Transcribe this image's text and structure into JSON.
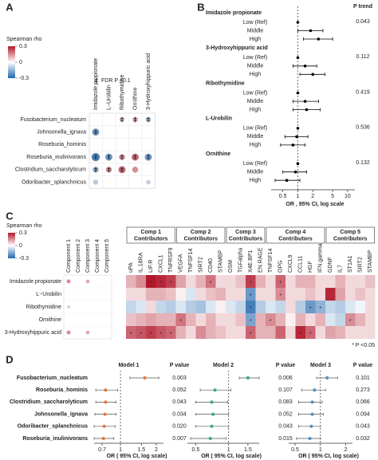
{
  "chart_data": [
    {
      "type": "dot-matrix",
      "panel": "A",
      "legend_title": "Spearman rho",
      "clim": [
        -0.3,
        0.3
      ],
      "colorbar_ticks": [
        0.3,
        0,
        -0.3
      ],
      "colors": {
        "low": "#2166ac",
        "mid": "#ffffff",
        "high": "#b2182b"
      },
      "fdr_label": "FDR P <0.1",
      "columns": [
        "Imidazole propionate",
        "L−Urobilin",
        "Ribothymidine",
        "Ornithine",
        "3-Hydroxyhippuric acid"
      ],
      "rows": [
        "Fusobacterium_nucleatum",
        "Johnsonella_ignava",
        "Roseburia_hominis",
        "Roseburia_inulinivorans",
        "Clostridium_saccharolyticum",
        "Odoribacter_splanchnicus"
      ],
      "values": [
        [
          null,
          null,
          0.1,
          0.12,
          -0.12
        ],
        [
          -0.2,
          null,
          null,
          null,
          null
        ],
        [
          null,
          null,
          null,
          null,
          null
        ],
        [
          -0.25,
          -0.2,
          0.15,
          0.2,
          -0.2
        ],
        [
          -0.15,
          0.15,
          0.2,
          0.15,
          null
        ],
        [
          -0.1,
          null,
          null,
          null,
          -0.08
        ]
      ],
      "fdr": [
        [
          false,
          false,
          true,
          true,
          true
        ],
        [
          true,
          false,
          false,
          false,
          false
        ],
        [
          false,
          false,
          false,
          false,
          false
        ],
        [
          true,
          true,
          true,
          true,
          true
        ],
        [
          true,
          true,
          true,
          false,
          false
        ],
        [
          false,
          false,
          false,
          false,
          false
        ]
      ]
    },
    {
      "type": "forest",
      "panel": "B",
      "p_header": "P trend",
      "xlabel": "OR , 95% CI, log scale",
      "log_x": true,
      "xlim": [
        0.35,
        14
      ],
      "xticks": [
        0.5,
        1,
        2,
        5,
        10
      ],
      "ref_line": 1,
      "color": "#000000",
      "groups": [
        {
          "name": "Imidazole propionate",
          "p_value": "0.043",
          "levels": [
            "Low (Ref)",
            "Middle",
            "High"
          ],
          "values": [
            1,
            1.8,
            2.6
          ],
          "lower": [
            null,
            1.0,
            1.3
          ],
          "upper": [
            null,
            3.2,
            5.0
          ]
        },
        {
          "name": "3-Hydroxyhippuric acid",
          "p_value": "0.112",
          "levels": [
            "Low (Ref)",
            "Middle",
            "High"
          ],
          "values": [
            1,
            1.4,
            2.0
          ],
          "lower": [
            null,
            0.8,
            1.1
          ],
          "upper": [
            null,
            2.4,
            3.5
          ]
        },
        {
          "name": "Ribothymidine",
          "p_value": "0.419",
          "levels": [
            "Low (Ref)",
            "Middle",
            "High"
          ],
          "values": [
            1,
            1.4,
            1.5
          ],
          "lower": [
            null,
            0.8,
            0.8
          ],
          "upper": [
            null,
            2.6,
            2.8
          ]
        },
        {
          "name": "L-Urobilin",
          "p_value": "0.536",
          "levels": [
            "Low (Ref)",
            "Middle",
            "High"
          ],
          "values": [
            1,
            0.95,
            0.8
          ],
          "lower": [
            null,
            0.55,
            0.45
          ],
          "upper": [
            null,
            1.6,
            1.4
          ]
        },
        {
          "name": "Ornithine",
          "p_value": "0.132",
          "levels": [
            "Low (Ref)",
            "Middle",
            "High"
          ],
          "values": [
            1,
            0.9,
            0.6
          ],
          "lower": [
            null,
            0.5,
            0.35
          ],
          "upper": [
            null,
            1.5,
            1.1
          ]
        }
      ]
    },
    {
      "type": "heatmap",
      "panel": "C",
      "legend_title": "Spearman rho",
      "clim": [
        -0.3,
        0.3
      ],
      "colorbar_ticks": [
        0.3,
        0,
        -0.3
      ],
      "colors": {
        "low": "#2166ac",
        "mid": "#ffffff",
        "high": "#b2182b"
      },
      "rows": [
        "Imidazole propionate",
        "L−Urobilin",
        "Ribothymidine",
        "Ornithine",
        "3-Hydroxyhippuric acid"
      ],
      "components": [
        "Component 1",
        "Component 2",
        "Component 3",
        "Component 4",
        "Component 5"
      ],
      "component_values": [
        [
          0.15,
          null,
          0.12,
          null,
          null
        ],
        [
          null,
          null,
          null,
          null,
          null
        ],
        [
          -0.08,
          null,
          null,
          null,
          null
        ],
        [
          null,
          null,
          null,
          null,
          null
        ],
        [
          0.15,
          null,
          0.12,
          null,
          null
        ]
      ],
      "groups": [
        {
          "name": "Comp 1",
          "suffix": "Contributors",
          "columns": [
            "uPA",
            "IL.18RA",
            "LIF.R",
            "CXCL1",
            "TNFRSF9"
          ]
        },
        {
          "name": "Comp 2",
          "suffix": "Contributors",
          "columns": [
            "VEGFA",
            "TNFSF14",
            "SIRT2",
            "CD40",
            "STAMBP"
          ]
        },
        {
          "name": "Comp 3",
          "suffix": "Contributors",
          "columns": [
            "OSM",
            "TGFalpha",
            "X4E.BP1",
            "EN.RAGE"
          ]
        },
        {
          "name": "Comp 4",
          "suffix": "Contributors",
          "columns": [
            "TNFSF14",
            "OPG",
            "CXCL9",
            "CCL11",
            "HGF",
            "IFN.gamma"
          ]
        },
        {
          "name": "Comp 5",
          "suffix": "Contributors",
          "columns": [
            "GDNF",
            "IL7",
            "ST1A1",
            "SIRT2",
            "STAMBP"
          ]
        }
      ],
      "values": [
        [
          0.1,
          0.15,
          0.3,
          0.28,
          0.25,
          0.12,
          0.05,
          0.1,
          0.18,
          0.05,
          0.05,
          0.08,
          0.25,
          0.1,
          0.05,
          0.2,
          0.05,
          0.1,
          0.1,
          0.05,
          0.05,
          0.1,
          0.05,
          0.05,
          0.08
        ],
        [
          0.05,
          0.05,
          0.1,
          0.1,
          0.08,
          0.02,
          -0.05,
          0.05,
          0.08,
          0.1,
          0.05,
          0.05,
          -0.2,
          0.05,
          0.05,
          0.15,
          0.05,
          0.05,
          0.08,
          0.05,
          0.28,
          0.12,
          0.05,
          0.08,
          0.05
        ],
        [
          -0.08,
          -0.05,
          0.05,
          -0.08,
          -0.1,
          -0.05,
          -0.1,
          -0.12,
          -0.05,
          0.02,
          -0.05,
          -0.08,
          -0.25,
          -0.1,
          -0.05,
          -0.08,
          0.05,
          -0.1,
          -0.2,
          -0.15,
          -0.08,
          -0.1,
          -0.05,
          -0.02,
          0.05
        ],
        [
          0.08,
          0.1,
          0.12,
          0.1,
          0.1,
          0.18,
          0.1,
          0.05,
          0.1,
          0.05,
          0.05,
          0.08,
          -0.18,
          0.1,
          0.15,
          0.1,
          0.02,
          0.1,
          0.05,
          0.1,
          -0.05,
          -0.08,
          0.15,
          0.1,
          0.05
        ],
        [
          0.2,
          0.22,
          0.25,
          0.22,
          0.2,
          0.1,
          0.05,
          0.15,
          0.1,
          0.08,
          0.05,
          0.05,
          0.2,
          0.1,
          0.1,
          0.2,
          0.05,
          0.28,
          0.2,
          0.05,
          0.12,
          0.1,
          0.05,
          0.05,
          0.05
        ]
      ],
      "stars": [
        [
          false,
          false,
          true,
          true,
          true,
          false,
          false,
          false,
          true,
          false,
          false,
          false,
          true,
          false,
          false,
          true,
          false,
          false,
          false,
          false,
          false,
          false,
          false,
          false,
          false
        ],
        [
          false,
          false,
          false,
          false,
          false,
          false,
          false,
          false,
          false,
          false,
          false,
          false,
          true,
          false,
          false,
          true,
          false,
          false,
          false,
          false,
          false,
          false,
          false,
          false,
          false
        ],
        [
          false,
          false,
          false,
          false,
          false,
          false,
          false,
          false,
          false,
          false,
          false,
          false,
          true,
          false,
          false,
          false,
          false,
          false,
          true,
          true,
          false,
          false,
          false,
          false,
          false
        ],
        [
          false,
          false,
          false,
          false,
          false,
          true,
          false,
          false,
          false,
          false,
          false,
          false,
          true,
          false,
          true,
          false,
          false,
          false,
          false,
          false,
          false,
          false,
          true,
          false,
          false
        ],
        [
          true,
          true,
          true,
          true,
          true,
          false,
          false,
          false,
          false,
          false,
          false,
          false,
          true,
          false,
          false,
          false,
          false,
          true,
          true,
          false,
          false,
          false,
          false,
          false,
          false
        ]
      ],
      "star_symbol": "*",
      "footnote": "* P <0.05"
    },
    {
      "type": "multi-forest",
      "panel": "D",
      "p_header": "P value",
      "xlabel": "OR ( 95% CI, log scale)",
      "log_x": true,
      "ref_line": 1,
      "categories": [
        "Fusobacterium_nucleatum",
        "Roseburia_hominis",
        "Clostridium_saccharolyticum",
        "Johnsonella_ignava",
        "Odoribacter_splanchnicus",
        "Roseburia_inulinivorans"
      ],
      "models": [
        {
          "title": "Model 1",
          "color": "#e8743b",
          "xlim": [
            0.6,
            2.3
          ],
          "xticks": [
            0.7,
            1,
            1.5,
            2
          ],
          "values": [
            1.6,
            0.75,
            0.75,
            0.74,
            0.73,
            0.72
          ],
          "lower": [
            1.2,
            0.62,
            0.62,
            0.61,
            0.6,
            0.6
          ],
          "upper": [
            2.1,
            0.95,
            0.92,
            0.92,
            0.9,
            0.88
          ],
          "p_values": [
            "0.003",
            "0.052",
            "0.043",
            "0.034",
            "0.020",
            "0.007"
          ]
        },
        {
          "title": "Model 2",
          "color": "#3aa58c",
          "xlim": [
            0.42,
            1.9
          ],
          "xticks": [
            0.5,
            1,
            1.5
          ],
          "values": [
            1.5,
            0.75,
            0.7,
            0.72,
            0.7,
            0.68
          ],
          "lower": [
            1.25,
            0.55,
            0.5,
            0.5,
            0.5,
            0.45
          ],
          "upper": [
            1.9,
            1.05,
            0.98,
            1.0,
            1.0,
            0.95
          ],
          "p_values": [
            "0.006",
            "0.107",
            "0.083",
            "0.052",
            "0.043",
            "0.015"
          ]
        },
        {
          "title": "Model 3",
          "color": "#4a90c8",
          "xlim": [
            0.42,
            2.4
          ],
          "xticks": [
            0.5,
            1,
            2
          ],
          "values": [
            1.2,
            0.85,
            0.8,
            0.8,
            0.78,
            0.75
          ],
          "lower": [
            0.9,
            0.6,
            0.55,
            0.55,
            0.55,
            0.52
          ],
          "upper": [
            1.6,
            1.15,
            1.05,
            1.08,
            1.0,
            1.0
          ],
          "p_values": [
            "0.101",
            "0.273",
            "0.066",
            "0.094",
            "0.043",
            "0.032"
          ]
        }
      ]
    }
  ]
}
